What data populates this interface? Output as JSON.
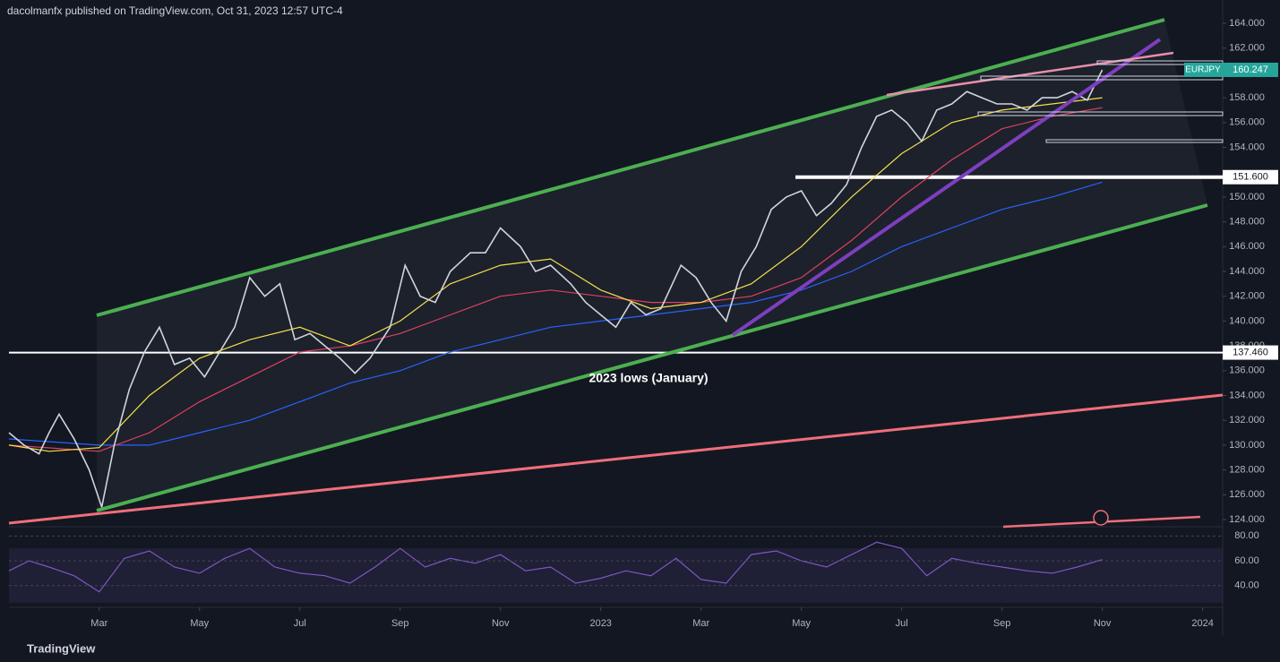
{
  "chart_data": {
    "type": "line",
    "header": "dacolmanfx published on TradingView.com, Oct 31, 2023 12:57 UTC-4",
    "annotation": "2023 lows (January)",
    "footer": "TradingView",
    "xlim": [
      1.2,
      25.4
    ],
    "xticks": [
      {
        "value": 3,
        "label": "Mar"
      },
      {
        "value": 5,
        "label": "May"
      },
      {
        "value": 7,
        "label": "Jul"
      },
      {
        "value": 9,
        "label": "Sep"
      },
      {
        "value": 11,
        "label": "Nov"
      },
      {
        "value": 13,
        "label": "2023"
      },
      {
        "value": 15,
        "label": "Mar"
      },
      {
        "value": 17,
        "label": "May"
      },
      {
        "value": 19,
        "label": "Jul"
      },
      {
        "value": 21,
        "label": "Sep"
      },
      {
        "value": 23,
        "label": "Nov"
      },
      {
        "value": 25,
        "label": "2024"
      }
    ],
    "ylim": [
      122.8,
      164.9
    ],
    "yticks": [
      {
        "value": 124,
        "label": "124.000"
      },
      {
        "value": 126,
        "label": "126.000"
      },
      {
        "value": 128,
        "label": "128.000"
      },
      {
        "value": 130,
        "label": "130.000"
      },
      {
        "value": 132,
        "label": "132.000"
      },
      {
        "value": 134,
        "label": "134.000"
      },
      {
        "value": 136,
        "label": "136.000"
      },
      {
        "value": 138,
        "label": "138.000"
      },
      {
        "value": 140,
        "label": "140.000"
      },
      {
        "value": 142,
        "label": "142.000"
      },
      {
        "value": 144,
        "label": "144.000"
      },
      {
        "value": 146,
        "label": "146.000"
      },
      {
        "value": 148,
        "label": "148.000"
      },
      {
        "value": 150,
        "label": "150.000"
      },
      {
        "value": 154,
        "label": "154.000"
      },
      {
        "value": 156,
        "label": "156.000"
      },
      {
        "value": 158,
        "label": "158.000"
      },
      {
        "value": 162,
        "label": "162.000"
      },
      {
        "value": 164,
        "label": "164.000"
      }
    ],
    "levels": [
      {
        "value": 151.6,
        "label": "151.600"
      },
      {
        "value": 137.46,
        "label": "137.460"
      }
    ],
    "last_price": {
      "name": "EURJPY",
      "value": 160.247,
      "label": "160.247"
    },
    "series": [
      {
        "name": "EURJPY",
        "color": "#d1d4dc",
        "x": [
          1.2,
          1.5,
          1.8,
          2.0,
          2.2,
          2.5,
          2.8,
          3.05,
          3.3,
          3.6,
          3.9,
          4.2,
          4.5,
          4.8,
          5.1,
          5.4,
          5.7,
          6.0,
          6.3,
          6.6,
          6.9,
          7.2,
          7.5,
          7.8,
          8.1,
          8.4,
          8.8,
          9.1,
          9.4,
          9.7,
          10.0,
          10.4,
          10.7,
          11.0,
          11.4,
          11.7,
          12.0,
          12.4,
          12.7,
          13.0,
          13.3,
          13.6,
          13.9,
          14.2,
          14.6,
          14.9,
          15.2,
          15.5,
          15.8,
          16.1,
          16.4,
          16.7,
          17.0,
          17.3,
          17.6,
          17.9,
          18.2,
          18.5,
          18.8,
          19.1,
          19.4,
          19.7,
          20.0,
          20.3,
          20.6,
          20.9,
          21.2,
          21.5,
          21.8,
          22.1,
          22.4,
          22.7,
          23.0
        ],
        "values": [
          131.0,
          130.0,
          129.3,
          131.0,
          132.5,
          130.5,
          128.0,
          125.0,
          130.0,
          134.5,
          137.5,
          139.5,
          136.5,
          137.0,
          135.5,
          137.5,
          139.5,
          143.5,
          142.0,
          143.0,
          138.5,
          139.0,
          138.0,
          137.0,
          135.8,
          137.0,
          139.5,
          144.5,
          142.0,
          141.5,
          144.0,
          145.5,
          145.5,
          147.5,
          146.0,
          144.0,
          144.5,
          143.0,
          141.5,
          140.5,
          139.5,
          141.5,
          140.5,
          141.0,
          144.5,
          143.5,
          141.5,
          140.0,
          144.0,
          146.0,
          149.0,
          150.0,
          150.5,
          148.5,
          149.5,
          151.0,
          154.0,
          156.5,
          157.0,
          156.0,
          154.5,
          157.0,
          157.5,
          158.5,
          158.0,
          157.5,
          157.5,
          157.0,
          158.0,
          158.0,
          158.5,
          157.8,
          160.247
        ]
      },
      {
        "color": "#f5e04a",
        "x": [
          1.2,
          2,
          3,
          4,
          5,
          6,
          7,
          8,
          9,
          10,
          11,
          12,
          13,
          14,
          15,
          16,
          17,
          18,
          19,
          20,
          21,
          22,
          23
        ],
        "values": [
          130,
          129.5,
          129.8,
          134,
          137,
          138.5,
          139.5,
          138,
          140,
          143,
          144.5,
          145,
          142.5,
          141,
          141.5,
          143,
          146,
          150,
          153.5,
          156,
          157,
          157.5,
          158
        ]
      },
      {
        "color": "#e0405e",
        "x": [
          1.2,
          3,
          4,
          5,
          6,
          7,
          8,
          9,
          10,
          11,
          12,
          13,
          14,
          15,
          16,
          17,
          18,
          19,
          20,
          21,
          22,
          23
        ],
        "values": [
          130,
          129.5,
          131,
          133.5,
          135.5,
          137.5,
          138,
          139,
          140.5,
          142,
          142.5,
          142,
          141.5,
          141.5,
          142,
          143.5,
          146.5,
          150,
          153,
          155.5,
          156.5,
          157.2
        ]
      },
      {
        "color": "#2962ff",
        "x": [
          1.2,
          3,
          4,
          5,
          6,
          7,
          8,
          9,
          10,
          11,
          12,
          13,
          14,
          15,
          16,
          17,
          18,
          19,
          20,
          21,
          22,
          23
        ],
        "values": [
          130.5,
          130,
          130,
          131,
          132,
          133.5,
          135,
          136,
          137.5,
          138.5,
          139.5,
          140,
          140.5,
          141,
          141.5,
          142.5,
          144,
          146,
          147.5,
          149,
          150,
          151.2
        ]
      }
    ],
    "rsi": {
      "color": "#7e57c2",
      "ylim": [
        24,
        86
      ],
      "yticks": [
        {
          "value": 40,
          "label": "40.00"
        },
        {
          "value": 60,
          "label": "60.00"
        },
        {
          "value": 80,
          "label": "80.00"
        }
      ],
      "x": [
        1.2,
        1.6,
        2.0,
        2.5,
        3.0,
        3.5,
        4.0,
        4.5,
        5.0,
        5.5,
        6.0,
        6.5,
        7.0,
        7.5,
        8.0,
        8.5,
        9.0,
        9.5,
        10.0,
        10.5,
        11.0,
        11.5,
        12.0,
        12.5,
        13.0,
        13.5,
        14.0,
        14.5,
        15.0,
        15.5,
        16.0,
        16.5,
        17.0,
        17.5,
        18.0,
        18.5,
        19.0,
        19.5,
        20.0,
        20.5,
        21.0,
        21.5,
        22.0,
        22.5,
        23.0
      ],
      "values": [
        52,
        60,
        55,
        48,
        35,
        62,
        68,
        55,
        50,
        62,
        70,
        55,
        50,
        48,
        42,
        55,
        70,
        55,
        62,
        58,
        65,
        52,
        55,
        42,
        46,
        52,
        48,
        62,
        45,
        42,
        65,
        68,
        60,
        55,
        65,
        75,
        70,
        48,
        62,
        58,
        55,
        52,
        50,
        55,
        61
      ]
    }
  }
}
